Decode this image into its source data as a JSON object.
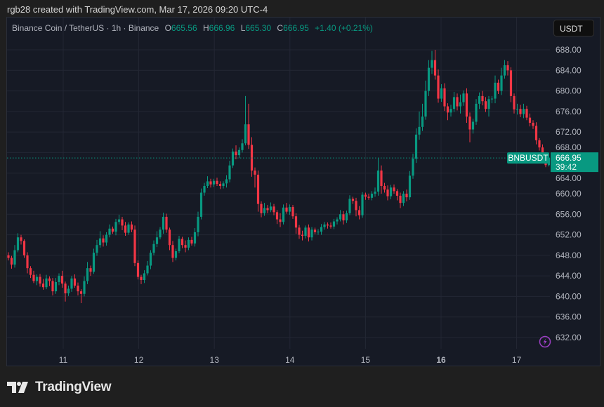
{
  "credit": "rgb28 created with TradingView.com, Mar 17, 2026 09:20 UTC-4",
  "legend": {
    "symbol": "Binance Coin / TetherUS · 1h · Binance",
    "o_label": "O",
    "o": "665.56",
    "h_label": "H",
    "h": "666.96",
    "l_label": "L",
    "l": "665.30",
    "c_label": "C",
    "c": "666.95",
    "change": "+1.40 (+0.21%)"
  },
  "currency_button": "USDT",
  "logo_text": "TradingView",
  "icons": {
    "lightning": "lightning-bolt-icon",
    "logo": "tradingview-logo-icon"
  },
  "colors": {
    "up": "#089981",
    "down": "#f23645",
    "background": "#161a25",
    "grid": "#232734",
    "label": "#089981",
    "lightning": "#9c3fc4"
  },
  "chart_data": {
    "type": "candlestick",
    "symbol_label": "BNBUSDT",
    "last_price": "666.95",
    "countdown": "39:42",
    "interval": "1h",
    "ylim": [
      628.5,
      692
    ],
    "y_ticks": [
      "632.00",
      "636.00",
      "640.00",
      "644.00",
      "648.00",
      "652.00",
      "656.00",
      "660.00",
      "664.00",
      "668.00",
      "672.00",
      "676.00",
      "680.00",
      "684.00",
      "688.00"
    ],
    "x_ticks": [
      {
        "label": "11",
        "bold": false
      },
      {
        "label": "12",
        "bold": false
      },
      {
        "label": "13",
        "bold": false
      },
      {
        "label": "14",
        "bold": false
      },
      {
        "label": "15",
        "bold": false
      },
      {
        "label": "16",
        "bold": true
      },
      {
        "label": "17",
        "bold": false
      }
    ],
    "x_start": "Mar 10 06:00",
    "grid": true,
    "first_open": 648,
    "close": [
      647.5,
      646.2,
      649,
      651.5,
      650.8,
      648,
      645.5,
      644.2,
      643,
      643.8,
      642.5,
      641.8,
      643.5,
      643,
      641,
      642.8,
      644,
      642.5,
      640.6,
      641.5,
      643.5,
      642.1,
      641,
      640.5,
      643,
      645.5,
      644.8,
      648.5,
      650,
      651.3,
      650.5,
      652,
      653.2,
      652.6,
      654.5,
      655,
      653.8,
      652.4,
      654,
      653,
      646.5,
      643.8,
      643.2,
      644.5,
      646,
      648.5,
      650.2,
      651.5,
      653,
      655.5,
      653,
      650,
      647.5,
      648.8,
      651.2,
      650,
      649.5,
      651,
      650.3,
      652.5,
      655.5,
      660.2,
      661.5,
      662.4,
      661.8,
      662.5,
      661.9,
      661.5,
      662,
      662.8,
      665.5,
      668.2,
      667.5,
      668.5,
      669.8,
      673.5,
      669.5,
      664.5,
      663.7,
      658,
      656.2,
      657.2,
      656.8,
      657.5,
      656.4,
      655,
      654.5,
      657.3,
      656.5,
      657.4,
      655.6,
      653.4,
      652,
      651.8,
      653.4,
      651.5,
      653,
      652.5,
      652.6,
      653.5,
      654,
      653.8,
      653.6,
      654.6,
      655,
      656,
      654.8,
      656.2,
      659,
      658.6,
      656.8,
      655.8,
      659.8,
      659.4,
      659.2,
      660,
      660.4,
      664.5,
      661.5,
      660.8,
      659.5,
      661.2,
      660.5,
      659.6,
      658.2,
      660,
      659.3,
      663.5,
      666.8,
      671.5,
      673,
      675,
      680,
      684.5,
      686,
      683,
      678.5,
      680.5,
      677,
      675.8,
      676.5,
      678.8,
      677,
      677.8,
      679.5,
      675,
      672.5,
      674,
      677.5,
      679,
      678,
      676.5,
      678.4,
      678.5,
      681.6,
      680,
      683,
      685,
      684,
      679,
      676.4,
      676.5,
      675.5,
      676.5,
      674.8,
      673.8,
      673.2,
      670.4,
      669,
      667.5,
      665.56,
      666.95
    ],
    "upper_wick": [
      0.6,
      0.4,
      1,
      0.8,
      0.5,
      0.3,
      0.6,
      0.4,
      0.8,
      0.5,
      0.6,
      0.9,
      0.7,
      0.4,
      0.6,
      0.8,
      0.5,
      1,
      0.4,
      0.6,
      0.5,
      0.8,
      0.6,
      0.4,
      0.9,
      1.2,
      0.5,
      0.8,
      1,
      1.4,
      0.6,
      0.5,
      0.8,
      0.4,
      0.6,
      0.9,
      0.5,
      0.7,
      0.4,
      0.6,
      0.8,
      0.5,
      0.4,
      0.6,
      0.9,
      0.5,
      0.7,
      1.2,
      0.5,
      0.8,
      0.6,
      0.4,
      0.8,
      0.5,
      0.6,
      0.4,
      0.9,
      0.5,
      0.6,
      0.8,
      1,
      0.8,
      0.6,
      1,
      0.5,
      0.4,
      0.6,
      0.5,
      0.4,
      0.8,
      0.9,
      0.6,
      1.2,
      0.5,
      0.8,
      5.5,
      4,
      1.5,
      0.6,
      0.8,
      0.5,
      1,
      0.6,
      0.8,
      0.5,
      0.4,
      1.2,
      0.6,
      0.9,
      0.5,
      0.4,
      0.6,
      0.5,
      0.8,
      0.4,
      0.6,
      0.5,
      0.4,
      0.5,
      0.6,
      0.5,
      0.4,
      0.6,
      0.5,
      0.4,
      0.8,
      0.6,
      0.5,
      0.7,
      0.4,
      0.6,
      0.8,
      0.5,
      0.4,
      0.6,
      0.5,
      0.8,
      2.5,
      1,
      0.6,
      0.8,
      0.5,
      0.6,
      0.4,
      0.6,
      0.5,
      0.8,
      0.9,
      1,
      1.2,
      3,
      2.5,
      2,
      1.5,
      1.8,
      2,
      1.2,
      0.8,
      1,
      0.6,
      0.8,
      1,
      0.7,
      1.5,
      0.6,
      1,
      0.8,
      0.6,
      0.9,
      0.7,
      1,
      0.8,
      0.6,
      0.5,
      1.4,
      0.6,
      1.5,
      1,
      0.8,
      0.6,
      0.5,
      1,
      0.8,
      1,
      0.6,
      0.8,
      0.5,
      0.7,
      0.4,
      0.6,
      0.5,
      0.01
    ],
    "lower_wick": [
      0.5,
      0.8,
      0.6,
      0.4,
      0.7,
      0.5,
      1,
      0.6,
      0.4,
      0.8,
      0.6,
      0.5,
      0.4,
      1,
      0.8,
      0.5,
      0.6,
      0.8,
      1.6,
      0.5,
      0.6,
      0.4,
      0.8,
      1.8,
      0.5,
      0.6,
      0.8,
      0.4,
      0.6,
      0.5,
      0.8,
      0.6,
      0.5,
      0.4,
      0.7,
      0.5,
      0.9,
      0.6,
      0.4,
      0.5,
      0.6,
      0.5,
      0.8,
      0.6,
      0.4,
      0.7,
      0.5,
      0.6,
      0.4,
      0.8,
      0.6,
      1,
      0.8,
      0.5,
      0.4,
      0.6,
      0.9,
      0.5,
      0.4,
      0.6,
      0.8,
      0.5,
      0.6,
      0.4,
      0.6,
      0.5,
      0.4,
      0.6,
      0.5,
      0.8,
      0.6,
      0.5,
      0.8,
      0.6,
      0.5,
      0.4,
      0.8,
      1.2,
      2.5,
      1.5,
      0.8,
      0.5,
      0.6,
      0.4,
      0.6,
      0.9,
      1,
      0.5,
      0.4,
      0.6,
      0.5,
      1.2,
      0.8,
      0.9,
      0.5,
      0.8,
      0.6,
      0.4,
      0.5,
      0.6,
      0.5,
      0.6,
      0.4,
      0.5,
      0.6,
      0.4,
      0.8,
      0.5,
      0.4,
      0.6,
      1.2,
      0.8,
      0.5,
      0.6,
      0.4,
      0.5,
      0.6,
      0.8,
      1.5,
      0.6,
      0.8,
      0.6,
      0.5,
      0.9,
      1,
      0.6,
      0.8,
      0.5,
      0.6,
      0.8,
      1,
      0.8,
      0.6,
      1,
      1.2,
      0.8,
      0.8,
      0.6,
      0.9,
      1.5,
      0.8,
      0.6,
      0.8,
      1.4,
      0.7,
      1.2,
      2.5,
      0.8,
      0.6,
      1,
      0.8,
      0.6,
      1.5,
      0.8,
      0.9,
      0.6,
      0.8,
      0.6,
      1,
      1.2,
      0.8,
      1,
      0.6,
      0.8,
      0.5,
      0.7,
      0.6,
      0.8,
      0.6,
      0.5,
      0.4,
      0.26
    ]
  }
}
